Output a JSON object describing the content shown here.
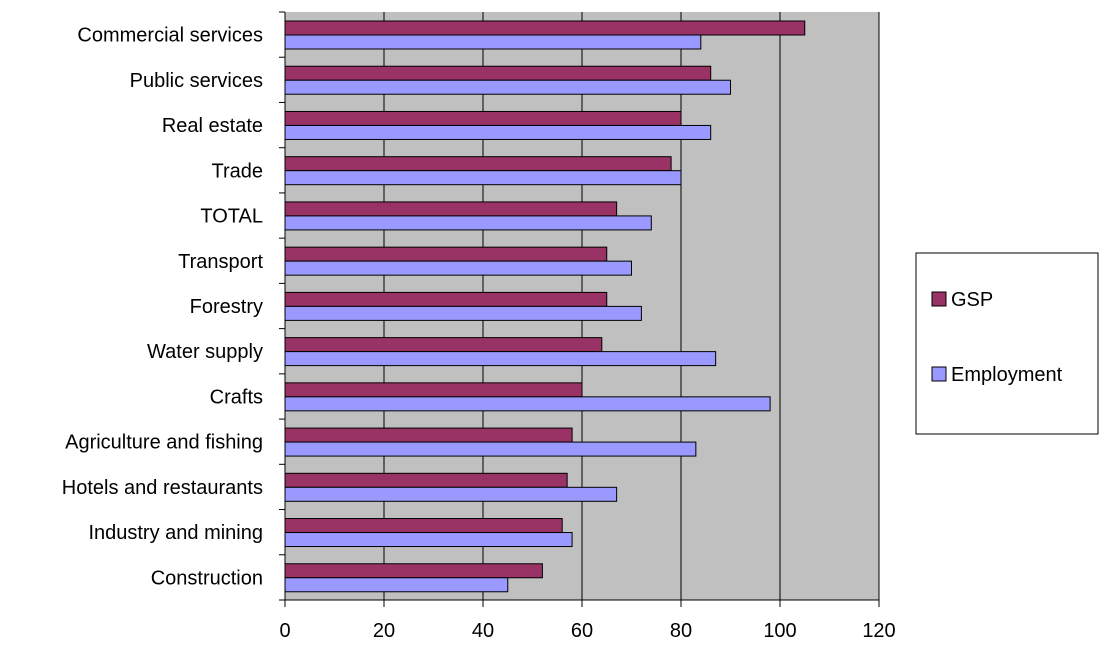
{
  "chart_data": {
    "type": "bar",
    "orientation": "horizontal",
    "categories": [
      "Commercial services",
      "Public services",
      "Real estate",
      "Trade",
      "TOTAL",
      "Transport",
      "Forestry",
      "Water supply",
      "Crafts",
      "Agriculture and fishing",
      "Hotels and restaurants",
      "Industry and mining",
      "Construction"
    ],
    "series": [
      {
        "name": "GSP",
        "color": "#993366",
        "values": [
          105,
          86,
          80,
          78,
          67,
          65,
          65,
          64,
          60,
          58,
          57,
          56,
          52
        ]
      },
      {
        "name": "Employment",
        "color": "#9999ff",
        "values": [
          84,
          90,
          86,
          80,
          74,
          70,
          72,
          87,
          98,
          83,
          67,
          58,
          45
        ]
      }
    ],
    "xlim": [
      0,
      120
    ],
    "xticks": [
      "0",
      "20",
      "40",
      "60",
      "80",
      "100",
      "120"
    ],
    "grid": "vertical",
    "plot_background": "#c0c0c0",
    "legend_position": "right"
  }
}
